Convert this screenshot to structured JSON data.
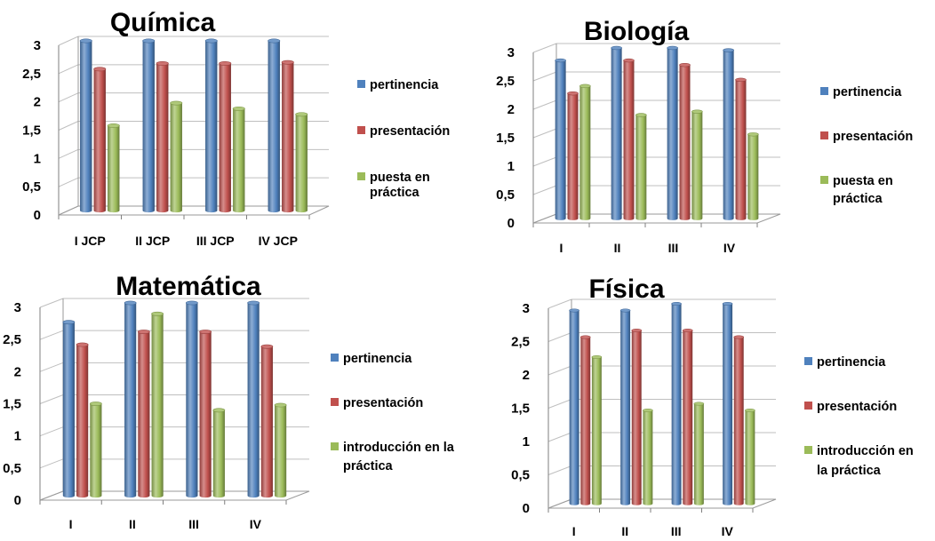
{
  "chart_data": [
    {
      "type": "bar",
      "title": "Química",
      "categories": [
        "I JCP",
        "II JCP",
        "III JCP",
        "IV JCP"
      ],
      "yticks": [
        "0",
        "0,5",
        "1",
        "1,5",
        "2",
        "2,5",
        "3"
      ],
      "ylim": [
        0,
        3
      ],
      "grid": true,
      "legend_position": "right",
      "series": [
        {
          "name": "pertinencia",
          "color": "#4f81bd",
          "values": [
            3.0,
            3.0,
            3.0,
            3.0
          ]
        },
        {
          "name": "presentación",
          "color": "#c0504d",
          "values": [
            2.5,
            2.6,
            2.6,
            2.62
          ]
        },
        {
          "name": "puesta en práctica",
          "color": "#9bbb59",
          "values": [
            1.5,
            1.9,
            1.8,
            1.7
          ]
        }
      ]
    },
    {
      "type": "bar",
      "title": "Biología",
      "categories": [
        "I",
        "II",
        "III",
        "IV"
      ],
      "yticks": [
        "0",
        "0,5",
        "1",
        "1,5",
        "2",
        "2,5",
        "3"
      ],
      "ylim": [
        0,
        3
      ],
      "grid": true,
      "legend_position": "right",
      "series": [
        {
          "name": "pertinencia",
          "color": "#4f81bd",
          "values": [
            2.78,
            3.0,
            3.0,
            2.96
          ]
        },
        {
          "name": "presentación",
          "color": "#c0504d",
          "values": [
            2.2,
            2.78,
            2.7,
            2.44
          ]
        },
        {
          "name": "puesta en práctica",
          "color": "#9bbb59",
          "values": [
            2.33,
            1.82,
            1.88,
            1.48
          ]
        }
      ]
    },
    {
      "type": "bar",
      "title": "Matemática",
      "categories": [
        "I",
        "II",
        "III",
        "IV"
      ],
      "yticks": [
        "0",
        "0,5",
        "1",
        "1,5",
        "2",
        "2,5",
        "3"
      ],
      "ylim": [
        0,
        3
      ],
      "grid": true,
      "legend_position": "right",
      "series": [
        {
          "name": "pertinencia",
          "color": "#4f81bd",
          "values": [
            2.7,
            3.0,
            3.0,
            3.0
          ]
        },
        {
          "name": "presentación",
          "color": "#c0504d",
          "values": [
            2.35,
            2.55,
            2.55,
            2.32
          ]
        },
        {
          "name": "introducción en la práctica",
          "color": "#9bbb59",
          "values": [
            1.43,
            2.83,
            1.33,
            1.41
          ]
        }
      ]
    },
    {
      "type": "bar",
      "title": "Física",
      "categories": [
        "I",
        "II",
        "III",
        "IV"
      ],
      "yticks": [
        "0",
        "0,5",
        "1",
        "1,5",
        "2",
        "2,5",
        "3"
      ],
      "ylim": [
        0,
        3
      ],
      "grid": true,
      "legend_position": "right",
      "series": [
        {
          "name": "pertinencia",
          "color": "#4f81bd",
          "values": [
            2.9,
            2.9,
            3.0,
            3.0
          ]
        },
        {
          "name": "presentación",
          "color": "#c0504d",
          "values": [
            2.5,
            2.6,
            2.6,
            2.5
          ]
        },
        {
          "name": "introducción en la práctica",
          "color": "#9bbb59",
          "values": [
            2.2,
            1.4,
            1.5,
            1.4
          ]
        }
      ]
    }
  ]
}
